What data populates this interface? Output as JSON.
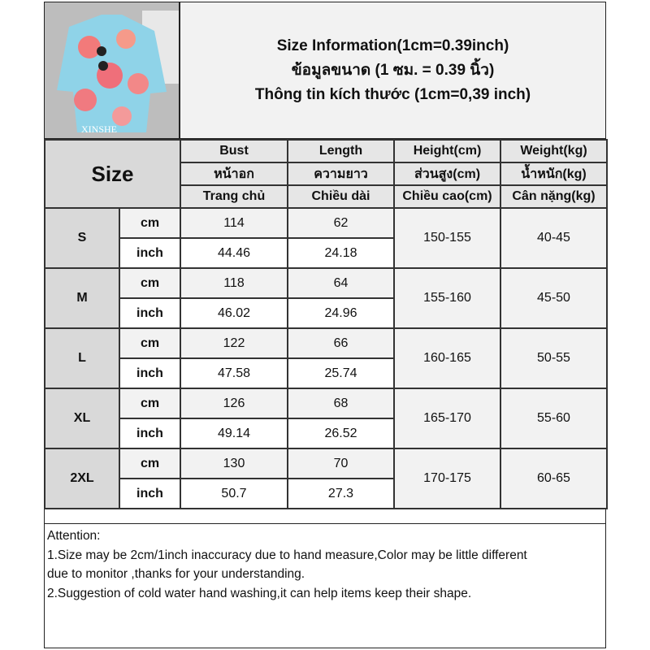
{
  "header": {
    "photo_watermark": "XINSHE",
    "title_en": "Size Information(1cm=0.39inch)",
    "title_th": "ข้อมูลขนาด (1 ซม. = 0.39 นิ้ว)",
    "title_vi": "Thông tin kích thước (1cm=0,39 inch)"
  },
  "table": {
    "size_label": "Size",
    "columns": [
      {
        "en": "Bust",
        "th": "หน้าอก",
        "vi": "Trang chủ"
      },
      {
        "en": "Length",
        "th": "ความยาว",
        "vi": "Chiều dài"
      },
      {
        "en": "Height(cm)",
        "th": "ส่วนสูง(cm)",
        "vi": "Chiều cao(cm)"
      },
      {
        "en": "Weight(kg)",
        "th": "น้ำหนัก(kg)",
        "vi": "Cân nặng(kg)"
      }
    ],
    "rows": [
      {
        "size": "S",
        "cm_label": "cm",
        "inch_label": "inch",
        "bust_cm": "114",
        "length_cm": "62",
        "bust_inch": "44.46",
        "length_inch": "24.18",
        "height": "150-155",
        "weight": "40-45"
      },
      {
        "size": "M",
        "cm_label": "cm",
        "inch_label": "inch",
        "bust_cm": "118",
        "length_cm": "64",
        "bust_inch": "46.02",
        "length_inch": "24.96",
        "height": "155-160",
        "weight": "45-50"
      },
      {
        "size": "L",
        "cm_label": "cm",
        "inch_label": "inch",
        "bust_cm": "122",
        "length_cm": "66",
        "bust_inch": "47.58",
        "length_inch": "25.74",
        "height": "160-165",
        "weight": "50-55"
      },
      {
        "size": "XL",
        "cm_label": "cm",
        "inch_label": "inch",
        "bust_cm": "126",
        "length_cm": "68",
        "bust_inch": "49.14",
        "length_inch": "26.52",
        "height": "165-170",
        "weight": "55-60"
      },
      {
        "size": "2XL",
        "cm_label": "cm",
        "inch_label": "inch",
        "bust_cm": "130",
        "length_cm": "70",
        "bust_inch": "50.7",
        "length_inch": "27.3",
        "height": "170-175",
        "weight": "60-65"
      }
    ]
  },
  "attention": {
    "heading": "Attention:",
    "line1": "1.Size may be 2cm/1inch inaccuracy due to hand measure,Color may be little different",
    "line2": "due to monitor ,thanks for your understanding.",
    "line3": "2.Suggestion of cold water hand washing,it can help items keep their shape."
  }
}
